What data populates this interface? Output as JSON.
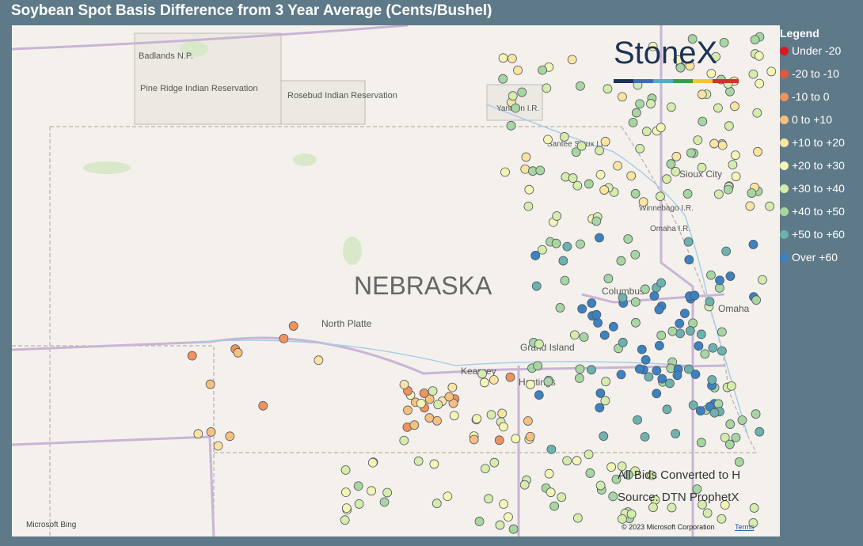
{
  "header": {
    "title": "Soybean Spot Basis Difference from 3 Year Average (Cents/Bushel)"
  },
  "legend": {
    "title": "Legend",
    "items": [
      {
        "label": "Under -20",
        "color": "#d7191c"
      },
      {
        "label": "-20 to -10",
        "color": "#e4583a"
      },
      {
        "label": "-10 to 0",
        "color": "#ef935c"
      },
      {
        "label": "0 to +10",
        "color": "#f6c07e"
      },
      {
        "label": "+10 to +20",
        "color": "#fbe4a0"
      },
      {
        "label": "+20 to +30",
        "color": "#f3f6b4"
      },
      {
        "label": "+30 to +40",
        "color": "#d5ecab"
      },
      {
        "label": "+40 to +50",
        "color": "#a7d6a0"
      },
      {
        "label": "+50 to +60",
        "color": "#6cb3ad"
      },
      {
        "label": "Over +60",
        "color": "#3b82c0"
      }
    ]
  },
  "logo": "StoneX",
  "map": {
    "labels": [
      "Badlands N.P.",
      "Pine Ridge Indian Reservation",
      "Rosebud Indian Reservation",
      "Yankton I.R.",
      "Santee Sioux I.R.",
      "Sioux City",
      "Winnebago I.R.",
      "Omaha I.R.",
      "NEBRASKA",
      "Columbus",
      "Omaha",
      "North Platte",
      "Grand Island",
      "Kearney",
      "Hastings"
    ],
    "notes": [
      "All Bids Converted to H",
      "Source: DTN ProphetX"
    ],
    "attribution": {
      "provider": "Microsoft Bing",
      "copyright": "© 2023 Microsoft Corporation",
      "terms": "Terms"
    }
  }
}
